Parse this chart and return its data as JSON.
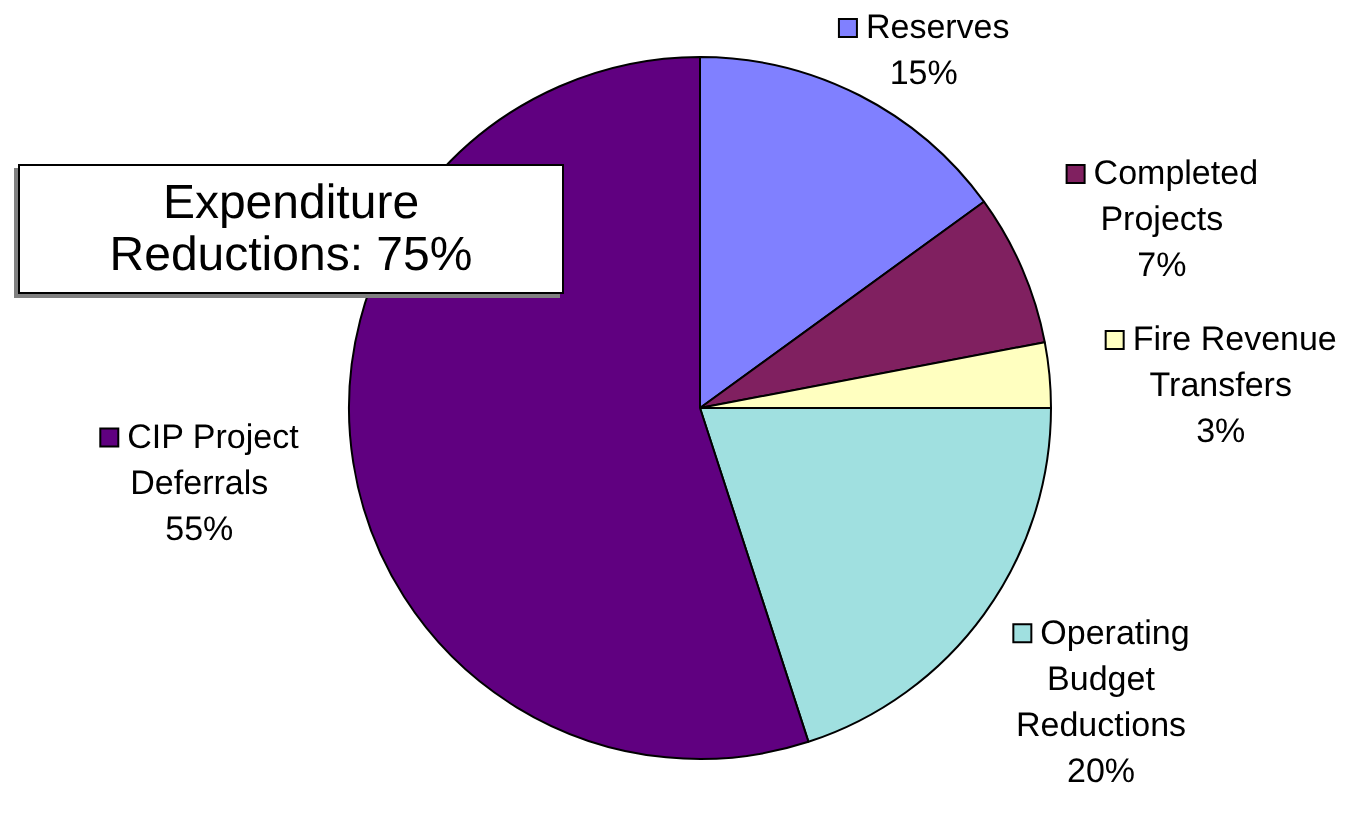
{
  "chart_data": {
    "type": "pie",
    "categories": [
      "Reserves",
      "Completed Projects",
      "Fire Revenue Transfers",
      "Operating Budget Reductions",
      "CIP Project Deferrals"
    ],
    "values": [
      15,
      7,
      3,
      20,
      55
    ],
    "value_labels": [
      "15%",
      "7%",
      "3%",
      "20%",
      "55%"
    ],
    "colors": [
      "#8080ff",
      "#802060",
      "#ffffc0",
      "#a0e0e0",
      "#600080"
    ],
    "legend": "right",
    "annotations": [
      "Expenditure Reductions: 75%"
    ]
  }
}
